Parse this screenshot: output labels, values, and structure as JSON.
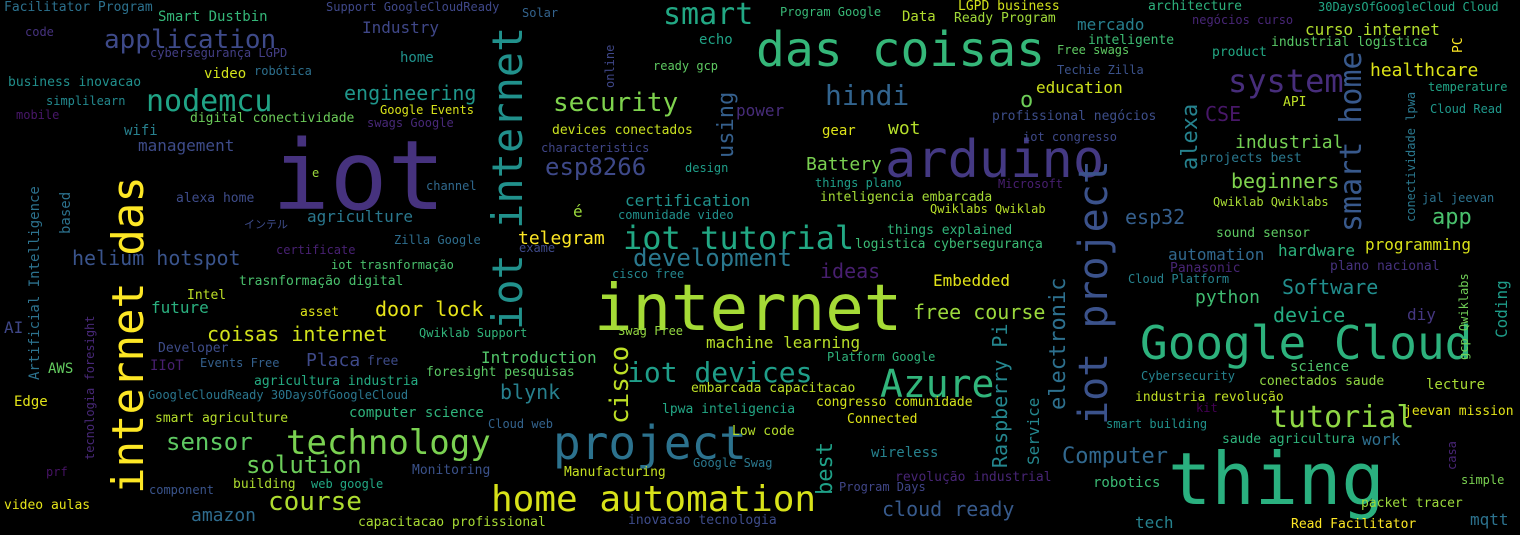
{
  "words": [
    {
      "text": "iot",
      "color": "#46327e"
    },
    {
      "text": "internet",
      "color": "#a5db36"
    },
    {
      "text": "thing",
      "color": "#2ab07f"
    },
    {
      "text": "das coisas",
      "color": "#35b779"
    },
    {
      "text": "arduino",
      "color": "#443983"
    },
    {
      "text": "Google Cloud",
      "color": "#2db27d"
    },
    {
      "text": "project",
      "color": "#2c728e"
    },
    {
      "text": "internet das",
      "color": "#fde725"
    },
    {
      "text": "iot internet",
      "color": "#21918c"
    },
    {
      "text": "iot project",
      "color": "#3b528b"
    },
    {
      "text": "home automation",
      "color": "#d8e219"
    },
    {
      "text": "Azure",
      "color": "#31b57b"
    },
    {
      "text": "technology",
      "color": "#7ad151"
    },
    {
      "text": "iot tutorial",
      "color": "#22a884"
    },
    {
      "text": "system",
      "color": "#472d7b"
    },
    {
      "text": "smart home",
      "color": "#38598c"
    },
    {
      "text": "tutorial",
      "color": "#8fd744"
    },
    {
      "text": "nodemcu",
      "color": "#20a486"
    },
    {
      "text": "iot devices",
      "color": "#1f9e89"
    },
    {
      "text": "smart",
      "color": "#22a884"
    },
    {
      "text": "application",
      "color": "#3e4a89"
    },
    {
      "text": "security",
      "color": "#7fd34e"
    },
    {
      "text": "hindi",
      "color": "#32648e"
    },
    {
      "text": "course",
      "color": "#addc30"
    },
    {
      "text": "solution",
      "color": "#6ccd5a"
    },
    {
      "text": "sensor",
      "color": "#5ec962"
    },
    {
      "text": "development",
      "color": "#2a788e"
    },
    {
      "text": "cisco",
      "color": "#bddf26"
    },
    {
      "text": "Computer",
      "color": "#31688e"
    },
    {
      "text": "esp8266",
      "color": "#3e4989"
    },
    {
      "text": "electronic",
      "color": "#2d708e"
    },
    {
      "text": "Raspberry Pi",
      "color": "#24868e"
    },
    {
      "text": "alexa",
      "color": "#26828e"
    },
    {
      "text": "using",
      "color": "#35608d"
    },
    {
      "text": "best",
      "color": "#1fa188"
    },
    {
      "text": "engineering",
      "color": "#1f968b"
    },
    {
      "text": "coisas internet",
      "color": "#d2e21b"
    },
    {
      "text": "helium hotspot",
      "color": "#3a548c"
    },
    {
      "text": "healthcare",
      "color": "#dde318"
    },
    {
      "text": "app",
      "color": "#4ac16d"
    },
    {
      "text": "blynk",
      "color": "#27808e"
    },
    {
      "text": "Software",
      "color": "#218e8d"
    },
    {
      "text": "ideas",
      "color": "#481f70"
    },
    {
      "text": "esp32",
      "color": "#355f8d"
    },
    {
      "text": "beginners",
      "color": "#7fd34e"
    },
    {
      "text": "door lock",
      "color": "#e7e419"
    },
    {
      "text": "free course",
      "color": "#9bd93c"
    },
    {
      "text": "telegram",
      "color": "#fde725"
    },
    {
      "text": "cloud ready",
      "color": "#375a8c"
    },
    {
      "text": "device",
      "color": "#25ab82"
    },
    {
      "text": "python",
      "color": "#40bd72"
    },
    {
      "text": "machine learning",
      "color": "#b8de29"
    },
    {
      "text": "amazon",
      "color": "#2f6c8e"
    },
    {
      "text": "o",
      "color": "#6ece58"
    },
    {
      "text": "Battery",
      "color": "#7ad151"
    },
    {
      "text": "industrial",
      "color": "#75d054"
    },
    {
      "text": "mercado",
      "color": "#277f8e"
    },
    {
      "text": "curso internet",
      "color": "#b2dd2d"
    },
    {
      "text": "education",
      "color": "#cde11d"
    },
    {
      "text": "programming",
      "color": "#d8e219"
    },
    {
      "text": "automation",
      "color": "#31688e"
    },
    {
      "text": "hardware",
      "color": "#2db27d"
    },
    {
      "text": "CSE",
      "color": "#481769"
    },
    {
      "text": "Placa",
      "color": "#3e4989"
    },
    {
      "text": "Introduction",
      "color": "#52c569"
    },
    {
      "text": "wot",
      "color": "#b5de2b"
    },
    {
      "text": "work",
      "color": "#2e6f8e"
    },
    {
      "text": "management",
      "color": "#3e4c8a"
    },
    {
      "text": "agriculture",
      "color": "#2a788e"
    },
    {
      "text": "future",
      "color": "#2ab07f"
    },
    {
      "text": "certification",
      "color": "#20928c"
    },
    {
      "text": "lecture",
      "color": "#a8db34"
    },
    {
      "text": "Coding",
      "color": "#1e9c89"
    },
    {
      "text": "power",
      "color": "#472c7a"
    },
    {
      "text": "Embedded",
      "color": "#e2e418"
    },
    {
      "text": "robotics",
      "color": "#3bbb75"
    },
    {
      "text": "tech",
      "color": "#26828e"
    },
    {
      "text": "mqtt",
      "color": "#2c728e"
    },
    {
      "text": "diy",
      "color": "#453781"
    },
    {
      "text": "Service",
      "color": "#24878e"
    },
    {
      "text": "science",
      "color": "#50c46a"
    },
    {
      "text": "wireless",
      "color": "#26828e"
    },
    {
      "text": "video",
      "color": "#d2e21b"
    },
    {
      "text": "home",
      "color": "#20928c"
    },
    {
      "text": "wifi",
      "color": "#27808e"
    },
    {
      "text": "Industry",
      "color": "#3f4788"
    },
    {
      "text": "Data",
      "color": "#b2dd2d"
    },
    {
      "text": "echo",
      "color": "#20a386"
    },
    {
      "text": "IIoT",
      "color": "#481f70"
    },
    {
      "text": "AI",
      "color": "#3f4788"
    },
    {
      "text": "AWS",
      "color": "#63cb5f"
    },
    {
      "text": "Edge",
      "color": "#e2e418"
    },
    {
      "text": "gear",
      "color": "#dde318"
    },
    {
      "text": "API",
      "color": "#bddf26"
    },
    {
      "text": "PC",
      "color": "#fde725"
    },
    {
      "text": "e",
      "color": "#9bd93c"
    },
    {
      "text": "é",
      "color": "#9bd93c"
    },
    {
      "text": "free",
      "color": "#3e4c8a"
    },
    {
      "text": "asset",
      "color": "#dde318"
    },
    {
      "text": "Intel",
      "color": "#bddf26"
    },
    {
      "text": "based",
      "color": "#2c728e"
    },
    {
      "text": "channel",
      "color": "#30698e"
    },
    {
      "text": "design",
      "color": "#1f9e89"
    },
    {
      "text": "simple",
      "color": "#7ad151"
    },
    {
      "text": "casa",
      "color": "#482576"
    },
    {
      "text": "kit",
      "color": "#440154"
    },
    {
      "text": "prf",
      "color": "#471365"
    },
    {
      "text": "mobile",
      "color": "#481769"
    },
    {
      "text": "code",
      "color": "#46327e"
    },
    {
      "text": "Solar",
      "color": "#33638d"
    },
    {
      "text": "online",
      "color": "#3f4788"
    },
    {
      "text": "product",
      "color": "#22a884"
    },
    {
      "text": "architecture",
      "color": "#2db27d"
    },
    {
      "text": "Microsoft",
      "color": "#481f70"
    },
    {
      "text": "temperature",
      "color": "#20a486"
    },
    {
      "text": "Cloud Read",
      "color": "#1f988b"
    },
    {
      "text": "Facilitator Program",
      "color": "#2c718e"
    },
    {
      "text": "Smart Dustbin",
      "color": "#35b779"
    },
    {
      "text": "Support GoogleCloudReady",
      "color": "#3f4889"
    },
    {
      "text": "Program Google",
      "color": "#38b977"
    },
    {
      "text": "LGPD business",
      "color": "#d2e21b"
    },
    {
      "text": "Ready Program",
      "color": "#a0da39"
    },
    {
      "text": "30DaysOfGoogleCloud Cloud",
      "color": "#22a785"
    },
    {
      "text": "negócios curso",
      "color": "#482677"
    },
    {
      "text": "inteligente",
      "color": "#3dbc74"
    },
    {
      "text": "industrial logística",
      "color": "#58c765"
    },
    {
      "text": "Free swags",
      "color": "#5ec962"
    },
    {
      "text": "Techie Zilla",
      "color": "#3b528b"
    },
    {
      "text": "cybersegurança LGPD",
      "color": "#433e85"
    },
    {
      "text": "robótica",
      "color": "#2d708e"
    },
    {
      "text": "business inovacao",
      "color": "#21908d"
    },
    {
      "text": "simplilearn",
      "color": "#23898e"
    },
    {
      "text": "Google Events",
      "color": "#d8e219"
    },
    {
      "text": "swags Google",
      "color": "#482878"
    },
    {
      "text": "digital conectividade",
      "color": "#6ccd5a"
    },
    {
      "text": "ready gcp",
      "color": "#5ec962"
    },
    {
      "text": "devices conectados",
      "color": "#c8e020"
    },
    {
      "text": "characteristics",
      "color": "#404688"
    },
    {
      "text": "profissional negócios",
      "color": "#3d4e8a"
    },
    {
      "text": "iot congresso",
      "color": "#3e4989"
    },
    {
      "text": "projects best",
      "color": "#2a788e"
    },
    {
      "text": "conectividade lpwa",
      "color": "#2a788e"
    },
    {
      "text": "jal jeevan",
      "color": "#2c728e"
    },
    {
      "text": "things plano",
      "color": "#1f9e89"
    },
    {
      "text": "inteligencia embarcada",
      "color": "#a5db36"
    },
    {
      "text": "Qwiklabs Qwiklab",
      "color": "#b8de29"
    },
    {
      "text": "Qwiklab Qwiklabs",
      "color": "#a8db34"
    },
    {
      "text": "alexa home",
      "color": "#3e4c8a"
    },
    {
      "text": "certificate",
      "color": "#482173"
    },
    {
      "text": "comunidade video",
      "color": "#21918c"
    },
    {
      "text": "things explained",
      "color": "#31b57b"
    },
    {
      "text": "logistica cybersegurança",
      "color": "#3bbb75"
    },
    {
      "text": "Zilla Google",
      "color": "#2e6e8e"
    },
    {
      "text": "exame",
      "color": "#3e4989"
    },
    {
      "text": "sound sensor",
      "color": "#5ec962"
    },
    {
      "text": "plano nacional",
      "color": "#46327e"
    },
    {
      "text": "Panasonic",
      "color": "#482576"
    },
    {
      "text": "Cloud Platform",
      "color": "#26828e"
    },
    {
      "text": "gcp Qwiklabs",
      "color": "#70cf57"
    },
    {
      "text": "cisco free",
      "color": "#24868e"
    },
    {
      "text": "iot trasnformação",
      "color": "#4ac16d"
    },
    {
      "text": "trasnformação digital",
      "color": "#4ac16d"
    },
    {
      "text": "Artificial Intelligence",
      "color": "#2c728e"
    },
    {
      "text": "tecnologia foresight",
      "color": "#482878"
    },
    {
      "text": "Developer",
      "color": "#3e4c8a"
    },
    {
      "text": "Events Free",
      "color": "#34608d"
    },
    {
      "text": "Qwiklab Support",
      "color": "#31b57b"
    },
    {
      "text": "Swag Free",
      "color": "#93d741"
    },
    {
      "text": "foresight pesquisas",
      "color": "#5ac864"
    },
    {
      "text": "agricultura industria",
      "color": "#25ab82"
    },
    {
      "text": "GoogleCloudReady 30DaysOfGoogleCloud",
      "color": "#2a768e"
    },
    {
      "text": "embarcada capacitacao",
      "color": "#bddf26"
    },
    {
      "text": "lpwa inteligencia",
      "color": "#22a785"
    },
    {
      "text": "Low code",
      "color": "#b5de2b"
    },
    {
      "text": "Platform Google",
      "color": "#2fb47c"
    },
    {
      "text": "congresso comunidade",
      "color": "#d2e21b"
    },
    {
      "text": "Connected",
      "color": "#dde318"
    },
    {
      "text": "Cybersecurity",
      "color": "#25838e"
    },
    {
      "text": "conectados saude",
      "color": "#90d743"
    },
    {
      "text": "industria revolução",
      "color": "#c0df25"
    },
    {
      "text": "smart building",
      "color": "#20928c"
    },
    {
      "text": "saude agricultura",
      "color": "#2fb47c"
    },
    {
      "text": "jeevan mission",
      "color": "#e2e418"
    },
    {
      "text": "computer science",
      "color": "#2fb47c"
    },
    {
      "text": "smart agriculture",
      "color": "#b5de2b"
    },
    {
      "text": "Monitoring",
      "color": "#3b528b"
    },
    {
      "text": "Manufacturing",
      "color": "#c5e021"
    },
    {
      "text": "Google Swag",
      "color": "#2a788e"
    },
    {
      "text": "Cloud web",
      "color": "#33638d"
    },
    {
      "text": "revolução industrial",
      "color": "#482576"
    },
    {
      "text": "Program Days",
      "color": "#404688"
    },
    {
      "text": "building",
      "color": "#addc30"
    },
    {
      "text": "web google",
      "color": "#22a884"
    },
    {
      "text": "component",
      "color": "#3a548c"
    },
    {
      "text": "video aulas",
      "color": "#e5e419"
    },
    {
      "text": "capacitacao profissional",
      "color": "#a8db34"
    },
    {
      "text": "inovacao tecnologia",
      "color": "#3e4c8a"
    },
    {
      "text": "packet tracer",
      "color": "#9bd93c"
    },
    {
      "text": "Read Facilitator",
      "color": "#fde725"
    },
    {
      "text": "インテル",
      "color": "#3e4c8a"
    }
  ]
}
